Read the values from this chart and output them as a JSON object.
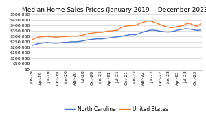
{
  "title": "Median Home Sales Prices (January 2019 -- December 2023)",
  "nc_values": [
    220000,
    228000,
    235000,
    240000,
    243000,
    246000,
    244000,
    242000,
    240000,
    241000,
    244000,
    247000,
    247000,
    250000,
    253000,
    251000,
    254000,
    257000,
    262000,
    267000,
    271000,
    274000,
    277000,
    279000,
    278000,
    280000,
    284000,
    287000,
    290000,
    294000,
    297000,
    300000,
    305000,
    310000,
    315000,
    318000,
    315000,
    322000,
    332000,
    342000,
    348000,
    355000,
    358000,
    356000,
    352000,
    347000,
    344000,
    341000,
    341000,
    344000,
    350000,
    357000,
    362000,
    366000,
    370000,
    367000,
    363000,
    358000,
    355000,
    358000
  ],
  "us_values": [
    273000,
    282000,
    292000,
    296000,
    299000,
    301000,
    299000,
    297000,
    294000,
    295000,
    297000,
    299000,
    299000,
    302000,
    305000,
    302000,
    305000,
    308000,
    314000,
    321000,
    327000,
    331000,
    334000,
    337000,
    337000,
    341000,
    347000,
    349000,
    351000,
    354000,
    357000,
    378000,
    388000,
    394000,
    397000,
    399000,
    399000,
    410000,
    421000,
    430000,
    437000,
    442000,
    436000,
    428000,
    416000,
    406000,
    396000,
    388000,
    383000,
    378000,
    384000,
    390000,
    394000,
    399000,
    414000,
    420000,
    409000,
    398000,
    393000,
    414000
  ],
  "x_labels": [
    "Jan-19",
    "Apr-19",
    "Jul-19",
    "Oct-19",
    "Jan-20",
    "Apr-20",
    "Jul-20",
    "Oct-20",
    "Jan-21",
    "Apr-21",
    "Jul-21",
    "Oct-21",
    "Jan-22",
    "Apr-22",
    "Jul-22",
    "Oct-22",
    "Jan-23",
    "Apr-23",
    "Jul-23",
    "Oct-23"
  ],
  "x_label_indices": [
    0,
    3,
    6,
    9,
    12,
    15,
    18,
    21,
    24,
    27,
    30,
    33,
    36,
    39,
    42,
    45,
    48,
    51,
    54,
    57
  ],
  "nc_color": "#4472C4",
  "us_color": "#ED7D31",
  "ylim": [
    0,
    500000
  ],
  "yticks": [
    0,
    50000,
    100000,
    150000,
    200000,
    250000,
    300000,
    350000,
    400000,
    450000,
    500000
  ],
  "background_color": "#ffffff",
  "legend_labels": [
    "North Carolina",
    "United States"
  ],
  "title_fontsize": 6.5,
  "tick_fontsize": 4.5,
  "legend_fontsize": 5.5,
  "line_width": 1.0
}
